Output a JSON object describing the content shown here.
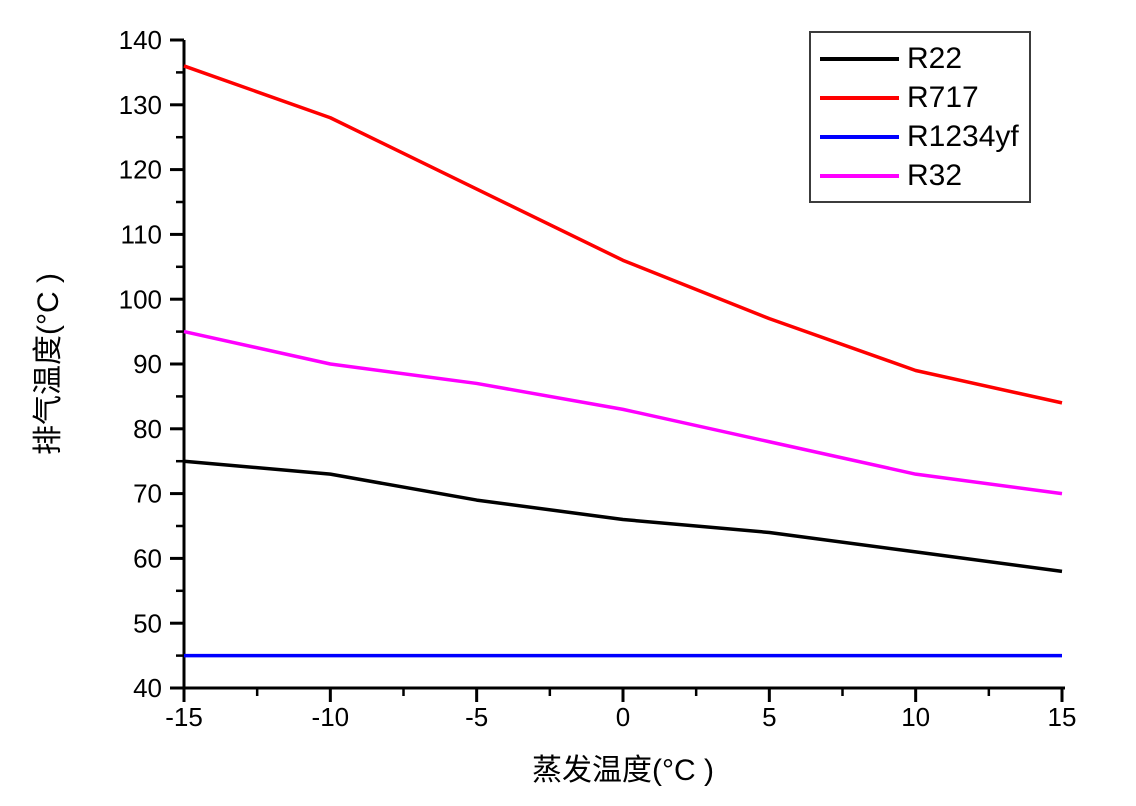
{
  "legend": {
    "entries": [
      {
        "label": "R22",
        "color": "#000000"
      },
      {
        "label": "R717",
        "color": "#ff0000"
      },
      {
        "label": "R1234yf",
        "color": "#0000ff"
      },
      {
        "label": "R32",
        "color": "#ff00ff"
      }
    ]
  },
  "chart_data": {
    "type": "line",
    "title": "",
    "xlabel": "蒸发温度(°C )",
    "ylabel": "排气温度(°C )",
    "x": [
      -15,
      -10,
      -5,
      0,
      5,
      10,
      15
    ],
    "series": [
      {
        "name": "R22",
        "color": "#000000",
        "values": [
          75,
          73,
          69,
          66,
          64,
          61,
          58
        ]
      },
      {
        "name": "R717",
        "color": "#ff0000",
        "values": [
          136,
          128,
          117,
          106,
          97,
          89,
          84
        ]
      },
      {
        "name": "R1234yf",
        "color": "#0000ff",
        "values": [
          45,
          45,
          45,
          45,
          45,
          45,
          45
        ]
      },
      {
        "name": "R32",
        "color": "#ff00ff",
        "values": [
          95,
          90,
          87,
          83,
          78,
          73,
          70
        ]
      }
    ],
    "xlim": [
      -15,
      15
    ],
    "ylim": [
      40,
      140
    ],
    "x_major_ticks": [
      -15,
      -10,
      -5,
      0,
      5,
      10,
      15
    ],
    "y_major_ticks": [
      40,
      50,
      60,
      70,
      80,
      90,
      100,
      110,
      120,
      130,
      140
    ],
    "x_minor_between_majors": true,
    "y_minor_between_majors": true,
    "grid": false,
    "legend_position": "top-right",
    "axis_color": "#000000",
    "line_width": 3.5
  }
}
